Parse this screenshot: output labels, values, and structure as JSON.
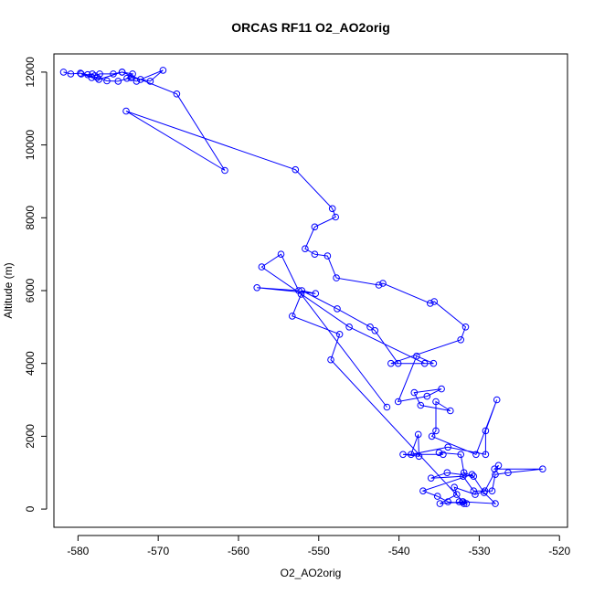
{
  "chart_data": {
    "type": "line",
    "title": "ORCAS RF11 O2_AO2orig",
    "xlabel": "O2_AO2orig",
    "ylabel": "Altitude (m)",
    "xlim": [
      -583,
      -519
    ],
    "ylim": [
      -500,
      12500
    ],
    "xticks": [
      -580,
      -570,
      -560,
      -550,
      -540,
      -530,
      -520
    ],
    "yticks": [
      0,
      2000,
      4000,
      6000,
      8000,
      10000,
      12000
    ],
    "grid": false,
    "series": [
      {
        "color": "#0000ff",
        "marker": "open-circle",
        "x": [
          -581.8,
          -580.9,
          -579.7,
          -578.8,
          -578.2,
          -577.9,
          -577.3,
          -575.6,
          -574.5,
          -573.2,
          -573.9,
          -572.7,
          -572.2,
          -569.4,
          -571.0,
          -573.4,
          -575.0,
          -576.4,
          -577.6,
          -579.6,
          -578.3,
          -577.4,
          -574.5,
          -567.7,
          -561.7,
          -574.0,
          -552.9,
          -548.3,
          -547.9,
          -550.5,
          -551.7,
          -550.5,
          -548.9,
          -547.8,
          -542.5,
          -542.0,
          -536.1,
          -535.6,
          -531.7,
          -532.3,
          -541.0,
          -536.8,
          -546.2,
          -557.1,
          -554.7,
          -552.5,
          -557.7,
          -550.4,
          -552.1,
          -547.7,
          -543.6,
          -543.0,
          -540.1,
          -535.7,
          -537.8,
          -540.1,
          -536.5,
          -534.7,
          -538.1,
          -537.3,
          -533.6,
          -535.4,
          -535.4,
          -535.9,
          -530.4,
          -527.8,
          -529.2,
          -529.2,
          -533.9,
          -538.5,
          -537.6,
          -537.5,
          -539.5,
          -534.5,
          -535.0,
          -532.3,
          -531.9,
          -530.7,
          -534.0,
          -536.0,
          -532.0,
          -530.7,
          -528.4,
          -528.0,
          -526.4,
          -522.1,
          -528.1,
          -527.6,
          -529.3,
          -530.5,
          -533.1,
          -532.8,
          -534.9,
          -532.1,
          -531.6,
          -532.5,
          -531.9,
          -533.9,
          -535.2,
          -537.0,
          -530.9,
          -529.4,
          -528.0,
          -532.0,
          -548.5,
          -547.4,
          -553.3,
          -552.2,
          -541.5
        ],
        "y": [
          12000,
          11950,
          11970,
          11930,
          11950,
          11900,
          11950,
          11950,
          12000,
          11950,
          11830,
          11750,
          11800,
          12050,
          11750,
          11850,
          11750,
          11760,
          11850,
          11950,
          11850,
          11800,
          12000,
          11400,
          9300,
          10930,
          9320,
          8250,
          8020,
          7750,
          7150,
          7000,
          6950,
          6350,
          6150,
          6200,
          5650,
          5700,
          5000,
          4650,
          4000,
          4000,
          5000,
          6650,
          7000,
          6000,
          6080,
          5920,
          6000,
          5500,
          5000,
          4900,
          4000,
          4000,
          4200,
          2950,
          3100,
          3300,
          3200,
          2850,
          2700,
          2950,
          2150,
          2000,
          1500,
          3000,
          2150,
          1500,
          1700,
          1500,
          2050,
          1450,
          1500,
          1500,
          1550,
          1500,
          1000,
          900,
          1000,
          850,
          900,
          500,
          500,
          950,
          1000,
          1100,
          1100,
          1200,
          500,
          400,
          600,
          400,
          150,
          200,
          150,
          200,
          150,
          200,
          350,
          500,
          950,
          450,
          150,
          200,
          4100,
          4800,
          5300,
          5900,
          2800
        ]
      }
    ]
  }
}
